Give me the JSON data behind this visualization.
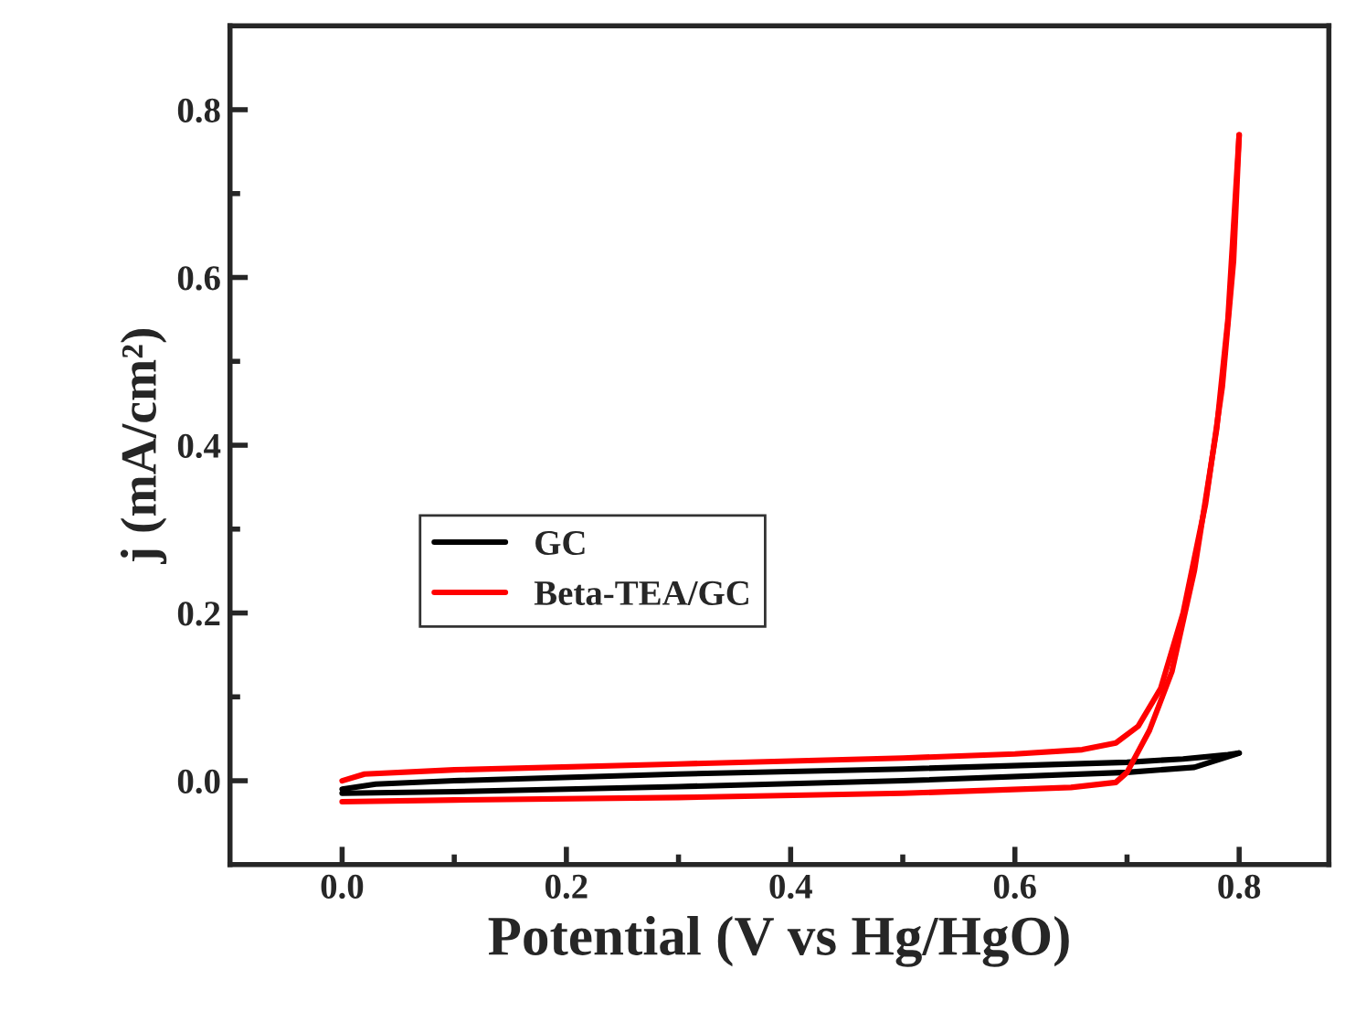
{
  "chart_data": {
    "type": "line",
    "xlabel": "Potential (V vs Hg/HgO)",
    "ylabel": "j (mA/cm²)",
    "xlim": [
      -0.1,
      0.88
    ],
    "xticks": [
      {
        "value": 0,
        "label": "0.0"
      },
      0.2,
      0.4,
      0.6,
      0.8
    ],
    "ylim": [
      -0.1,
      0.9
    ],
    "yticks": [
      {
        "value": 0,
        "label": "0.0"
      },
      0.2,
      0.4,
      0.6,
      0.8
    ],
    "legend": "center",
    "grid": false,
    "marker": "none",
    "line_style": "solid",
    "series": [
      {
        "name": "GC",
        "color": "#000000",
        "x": [
          0.0,
          0.1,
          0.3,
          0.5,
          0.7,
          0.76,
          0.8
        ],
        "values": [
          -0.015,
          -0.013,
          -0.007,
          0.0,
          0.01,
          0.016,
          0.033
        ]
      },
      {
        "color": "#000000",
        "x": [
          0.8,
          0.79,
          0.75,
          0.7,
          0.5,
          0.3,
          0.1,
          0.03,
          0.0
        ],
        "values": [
          0.033,
          0.031,
          0.026,
          0.022,
          0.014,
          0.008,
          0.0,
          -0.004,
          -0.01
        ]
      },
      {
        "name": "Beta-TEA/GC",
        "color": "#ff0000",
        "x": [
          0.0,
          0.1,
          0.3,
          0.5,
          0.65,
          0.69,
          0.7,
          0.72,
          0.74,
          0.76,
          0.78,
          0.79,
          0.8
        ],
        "values": [
          -0.025,
          -0.023,
          -0.02,
          -0.015,
          -0.008,
          -0.002,
          0.01,
          0.06,
          0.13,
          0.25,
          0.42,
          0.55,
          0.77
        ]
      },
      {
        "color": "#ff0000",
        "x": [
          0.8,
          0.795,
          0.785,
          0.77,
          0.75,
          0.73,
          0.71,
          0.69,
          0.66,
          0.6,
          0.5,
          0.3,
          0.1,
          0.02,
          0.0
        ],
        "values": [
          0.77,
          0.62,
          0.47,
          0.33,
          0.2,
          0.11,
          0.065,
          0.045,
          0.037,
          0.032,
          0.027,
          0.02,
          0.013,
          0.008,
          0.0
        ]
      }
    ]
  }
}
